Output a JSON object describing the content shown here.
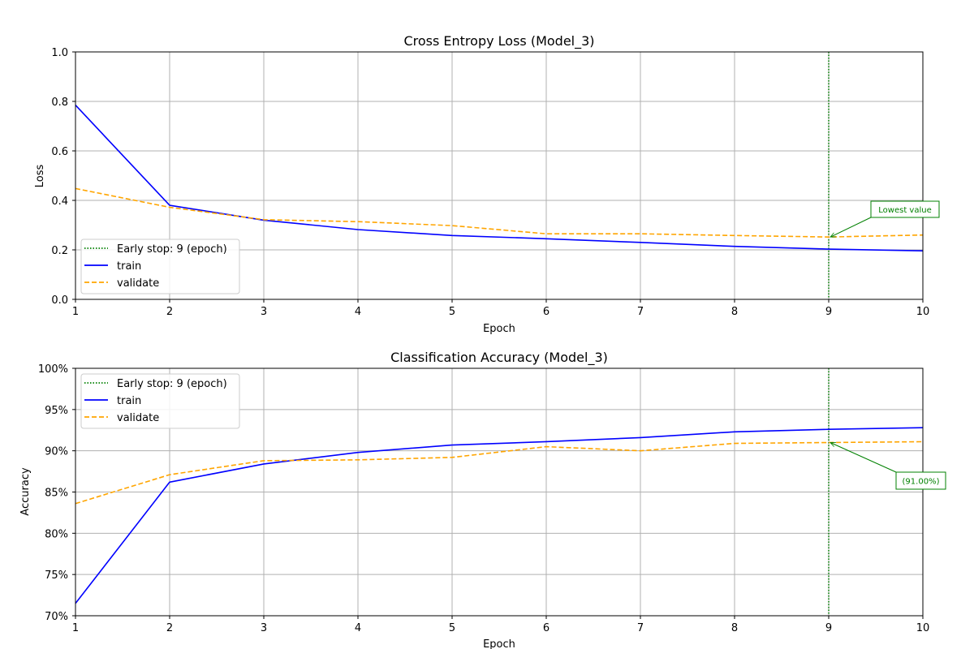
{
  "chart_data": [
    {
      "type": "line",
      "title": "Cross Entropy Loss (Model_3)",
      "xlabel": "Epoch",
      "ylabel": "Loss",
      "xlim": [
        1,
        10
      ],
      "ylim": [
        0,
        1
      ],
      "x": [
        1,
        2,
        3,
        4,
        5,
        6,
        7,
        8,
        9,
        10
      ],
      "xticks": [
        "1",
        "2",
        "3",
        "4",
        "5",
        "6",
        "7",
        "8",
        "9",
        "10"
      ],
      "yticks": [
        "0.0",
        "0.2",
        "0.4",
        "0.6",
        "0.8",
        "1.0"
      ],
      "grid": true,
      "legend_position": "lower-left",
      "series": [
        {
          "name": "train",
          "color": "#0000ff",
          "dash": "solid",
          "values": [
            0.785,
            0.38,
            0.32,
            0.282,
            0.258,
            0.245,
            0.23,
            0.214,
            0.203,
            0.196
          ]
        },
        {
          "name": "validate",
          "color": "#ffa500",
          "dash": "dashed",
          "values": [
            0.448,
            0.372,
            0.322,
            0.314,
            0.298,
            0.265,
            0.265,
            0.258,
            0.252,
            0.26
          ]
        }
      ],
      "early_stop": {
        "label": "Early stop: 9 (epoch)",
        "epoch": 9,
        "color": "#008000"
      },
      "annotation": {
        "text": "Lowest value",
        "x": 9,
        "y": 0.252,
        "color": "#008000"
      }
    },
    {
      "type": "line",
      "title": "Classification Accuracy (Model_3)",
      "xlabel": "Epoch",
      "ylabel": "Accuracy",
      "xlim": [
        1,
        10
      ],
      "ylim": [
        70,
        100
      ],
      "x": [
        1,
        2,
        3,
        4,
        5,
        6,
        7,
        8,
        9,
        10
      ],
      "xticks": [
        "1",
        "2",
        "3",
        "4",
        "5",
        "6",
        "7",
        "8",
        "9",
        "10"
      ],
      "yticks": [
        "70%",
        "75%",
        "80%",
        "85%",
        "90%",
        "95%",
        "100%"
      ],
      "grid": true,
      "legend_position": "upper-left",
      "series": [
        {
          "name": "train",
          "color": "#0000ff",
          "dash": "solid",
          "values": [
            71.5,
            86.2,
            88.4,
            89.8,
            90.7,
            91.1,
            91.6,
            92.3,
            92.6,
            92.8
          ]
        },
        {
          "name": "validate",
          "color": "#ffa500",
          "dash": "dashed",
          "values": [
            83.6,
            87.1,
            88.8,
            88.9,
            89.2,
            90.5,
            90.0,
            90.9,
            91.0,
            91.1
          ]
        }
      ],
      "early_stop": {
        "label": "Early stop: 9 (epoch)",
        "epoch": 9,
        "color": "#008000"
      },
      "annotation": {
        "text": "(91.00%)",
        "x": 9,
        "y": 91.0,
        "color": "#008000"
      }
    }
  ]
}
